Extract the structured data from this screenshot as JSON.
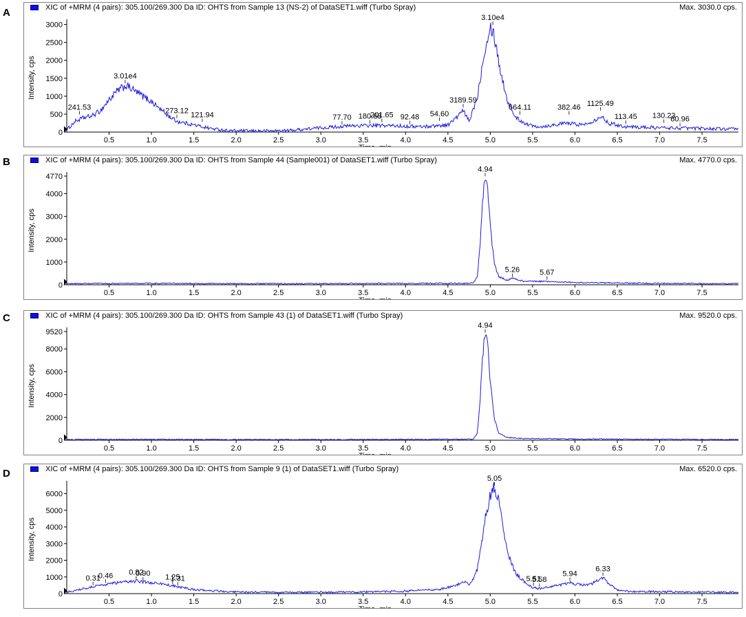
{
  "panels": [
    {
      "letter": "A",
      "title": "XIC of +MRM (4 pairs): 305.100/269.300 Da ID: OHTS from Sample 13 (NS-2) of DataSET1.wiff (Turbo Spray)",
      "max_text": "Max. 3030.0 cps."
    },
    {
      "letter": "B",
      "title": "XIC of +MRM (4 pairs): 305.100/269.300 Da ID: OHTS from Sample 44 (Sample001) of DataSET1.wiff (Turbo Spray)",
      "max_text": "Max. 4770.0 cps."
    },
    {
      "letter": "C",
      "title": "XIC of +MRM (4 pairs): 305.100/269.300 Da ID: OHTS from Sample 43 (1) of DataSET1.wiff (Turbo Spray)",
      "max_text": "Max. 9520.0 cps."
    },
    {
      "letter": "D",
      "title": "XIC of +MRM (4 pairs): 305.100/269.300 Da ID: OHTS from Sample 9 (1) of DataSET1.wiff (Turbo Spray)",
      "max_text": "Max. 6520.0 cps."
    }
  ],
  "chart_data": [
    {
      "type": "line",
      "xlabel": "Time, min",
      "ylabel": "Intensity, cps",
      "xlim": [
        0,
        7.93
      ],
      "ylim": [
        0,
        3030
      ],
      "xticks": [
        0.5,
        1.0,
        1.5,
        2.0,
        2.5,
        3.0,
        3.5,
        4.0,
        4.5,
        5.0,
        5.5,
        6.0,
        6.5,
        7.0,
        7.5
      ],
      "yticks": [
        0,
        500,
        1000,
        1500,
        2000,
        2500,
        3000
      ],
      "color": "#1a1adc",
      "trace": {
        "x": [
          0.0,
          0.1,
          0.2,
          0.3,
          0.4,
          0.5,
          0.6,
          0.7,
          0.8,
          0.9,
          1.0,
          1.1,
          1.2,
          1.3,
          1.5,
          1.7,
          1.9,
          2.2,
          2.6,
          3.0,
          3.4,
          3.8,
          4.2,
          4.5,
          4.6,
          4.68,
          4.75,
          4.85,
          4.9,
          4.95,
          5.0,
          5.03,
          5.07,
          5.12,
          5.2,
          5.3,
          5.45,
          5.6,
          5.9,
          6.1,
          6.25,
          6.3,
          6.4,
          6.6,
          7.0,
          7.5,
          7.93
        ],
        "y": [
          60,
          300,
          400,
          450,
          600,
          900,
          1150,
          1300,
          1150,
          1000,
          850,
          650,
          450,
          300,
          200,
          100,
          40,
          30,
          40,
          120,
          180,
          180,
          150,
          200,
          400,
          600,
          300,
          1000,
          1800,
          2500,
          2950,
          2850,
          2400,
          1700,
          900,
          400,
          200,
          150,
          250,
          200,
          350,
          450,
          250,
          150,
          120,
          100,
          80
        ]
      },
      "noise": 80,
      "annotations": [
        {
          "x": 0.15,
          "y": 450,
          "text": "241.53"
        },
        {
          "x": 0.69,
          "y": 1320,
          "text": "3.01e4"
        },
        {
          "x": 1.3,
          "y": 350,
          "text": "273.12"
        },
        {
          "x": 1.6,
          "y": 240,
          "text": "121.94"
        },
        {
          "x": 3.25,
          "y": 170,
          "text": "77.70"
        },
        {
          "x": 3.58,
          "y": 200,
          "text": "180.68"
        },
        {
          "x": 3.72,
          "y": 240,
          "text": "201.65"
        },
        {
          "x": 4.05,
          "y": 180,
          "text": "92.48"
        },
        {
          "x": 4.4,
          "y": 270,
          "text": "54.60"
        },
        {
          "x": 4.68,
          "y": 650,
          "text": "3189.59"
        },
        {
          "x": 5.03,
          "y": 2950,
          "text": "3.10e4"
        },
        {
          "x": 5.35,
          "y": 450,
          "text": "664.11"
        },
        {
          "x": 5.93,
          "y": 450,
          "text": "382.46"
        },
        {
          "x": 6.3,
          "y": 560,
          "text": "1125.49"
        },
        {
          "x": 6.6,
          "y": 190,
          "text": "113.45"
        },
        {
          "x": 7.05,
          "y": 220,
          "text": "130.23"
        },
        {
          "x": 7.24,
          "y": 120,
          "text": "60.96"
        }
      ]
    },
    {
      "type": "line",
      "xlabel": "Time, min",
      "ylabel": "Intensity, cps",
      "xlim": [
        0,
        7.93
      ],
      "ylim": [
        0,
        4770
      ],
      "xticks": [
        0.5,
        1.0,
        1.5,
        2.0,
        2.5,
        3.0,
        3.5,
        4.0,
        4.5,
        5.0,
        5.5,
        6.0,
        6.5,
        7.0,
        7.5
      ],
      "yticks": [
        0,
        1000,
        2000,
        3000,
        4000,
        4770
      ],
      "color": "#1a1adc",
      "trace": {
        "x": [
          0.0,
          1.0,
          2.0,
          3.0,
          4.0,
          4.5,
          4.8,
          4.85,
          4.88,
          4.91,
          4.94,
          4.97,
          5.0,
          5.05,
          5.1,
          5.2,
          5.26,
          5.4,
          5.67,
          6.0,
          7.0,
          7.93
        ],
        "y": [
          50,
          60,
          50,
          50,
          60,
          60,
          70,
          400,
          1800,
          3800,
          4700,
          4200,
          2500,
          900,
          350,
          200,
          280,
          150,
          150,
          100,
          60,
          50
        ],
        "x_note": ""
      },
      "noise": 45,
      "annotations": [
        {
          "x": 4.94,
          "y": 4700,
          "text": "4.94"
        },
        {
          "x": 5.26,
          "y": 280,
          "text": "5.26"
        },
        {
          "x": 5.67,
          "y": 160,
          "text": "5.67"
        }
      ]
    },
    {
      "type": "line",
      "xlabel": "Time, min",
      "ylabel": "Intensity, cps",
      "xlim": [
        0,
        7.93
      ],
      "ylim": [
        0,
        9520
      ],
      "xticks": [
        0.5,
        1.0,
        1.5,
        2.0,
        2.5,
        3.0,
        3.5,
        4.0,
        4.5,
        5.0,
        5.5,
        6.0,
        6.5,
        7.0,
        7.5
      ],
      "yticks": [
        0,
        2000,
        4000,
        6000,
        8000,
        9520
      ],
      "color": "#1a1adc",
      "trace": {
        "x": [
          0.0,
          1.0,
          2.0,
          3.0,
          4.0,
          4.5,
          4.8,
          4.85,
          4.88,
          4.91,
          4.94,
          4.97,
          5.0,
          5.05,
          5.1,
          5.2,
          5.4,
          6.0,
          7.0,
          7.93
        ],
        "y": [
          60,
          80,
          60,
          60,
          70,
          80,
          90,
          700,
          3500,
          7500,
          9300,
          8500,
          5000,
          1800,
          600,
          250,
          150,
          100,
          80,
          60
        ]
      },
      "noise": 70,
      "annotations": [
        {
          "x": 4.94,
          "y": 9300,
          "text": "4.94"
        }
      ]
    },
    {
      "type": "line",
      "xlabel": "Time, min",
      "ylabel": "Intensity, cps",
      "xlim": [
        0,
        7.93
      ],
      "ylim": [
        0,
        6520
      ],
      "xticks": [
        0.5,
        1.0,
        1.5,
        2.0,
        2.5,
        3.0,
        3.5,
        4.0,
        4.5,
        5.0,
        5.5,
        6.0,
        6.5,
        7.0,
        7.5
      ],
      "yticks": [
        0,
        1000,
        2000,
        3000,
        4000,
        5000,
        6000
      ],
      "color": "#1a1adc",
      "trace": {
        "x": [
          0.0,
          0.2,
          0.31,
          0.46,
          0.6,
          0.82,
          0.9,
          1.1,
          1.25,
          1.31,
          1.5,
          1.8,
          2.0,
          2.5,
          3.0,
          3.5,
          4.0,
          4.4,
          4.6,
          4.7,
          4.75,
          4.8,
          4.85,
          4.9,
          4.95,
          5.0,
          5.05,
          5.1,
          5.15,
          5.2,
          5.3,
          5.45,
          5.51,
          5.58,
          5.7,
          5.85,
          5.94,
          6.1,
          6.2,
          6.33,
          6.4,
          6.5,
          6.7,
          7.0,
          7.5,
          7.93
        ],
        "y": [
          100,
          300,
          420,
          560,
          650,
          750,
          700,
          600,
          480,
          400,
          250,
          150,
          100,
          70,
          80,
          100,
          150,
          250,
          500,
          700,
          550,
          900,
          1500,
          3000,
          4800,
          6000,
          6400,
          5800,
          4000,
          2500,
          1200,
          500,
          350,
          300,
          400,
          550,
          650,
          500,
          600,
          950,
          600,
          200,
          120,
          120,
          100,
          80
        ]
      },
      "noise": 100,
      "annotations": [
        {
          "x": 0.31,
          "y": 420,
          "text": "0.31"
        },
        {
          "x": 0.46,
          "y": 560,
          "text": "0.46"
        },
        {
          "x": 0.82,
          "y": 760,
          "text": "0.82"
        },
        {
          "x": 0.9,
          "y": 700,
          "text": "0.90"
        },
        {
          "x": 1.25,
          "y": 480,
          "text": "1.25"
        },
        {
          "x": 1.31,
          "y": 400,
          "text": "1.31"
        },
        {
          "x": 5.05,
          "y": 6400,
          "text": "5.05"
        },
        {
          "x": 5.51,
          "y": 380,
          "text": "5.51"
        },
        {
          "x": 5.58,
          "y": 320,
          "text": "5.58"
        },
        {
          "x": 5.94,
          "y": 680,
          "text": "5.94"
        },
        {
          "x": 6.33,
          "y": 980,
          "text": "6.33"
        }
      ]
    }
  ]
}
